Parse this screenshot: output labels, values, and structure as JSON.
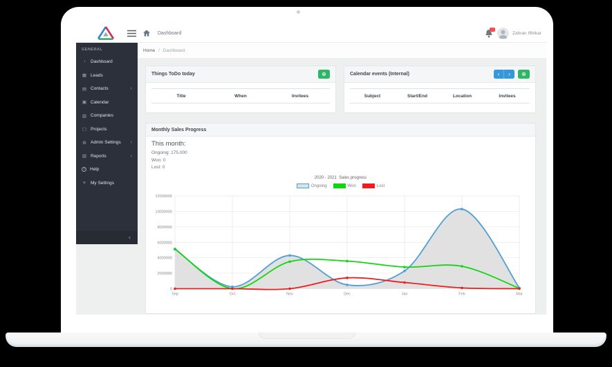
{
  "navbar": {
    "page_title": "Dashboard",
    "user_name": "Zahran Ifthikar",
    "notification_badge": ""
  },
  "breadcrumb": {
    "home": "Home",
    "separator": "/",
    "current": "Dashboard"
  },
  "sidebar": {
    "section_label": "GENERAL",
    "items": [
      {
        "label": "Dashboard",
        "icon": "speedometer-icon",
        "has_submenu": false
      },
      {
        "label": "Leads",
        "icon": "table-icon",
        "has_submenu": false
      },
      {
        "label": "Contacts",
        "icon": "address-book-icon",
        "has_submenu": true
      },
      {
        "label": "Calendar",
        "icon": "calendar-icon",
        "has_submenu": false
      },
      {
        "label": "Companies",
        "icon": "building-icon",
        "has_submenu": false
      },
      {
        "label": "Projects",
        "icon": "document-icon",
        "has_submenu": false
      },
      {
        "label": "Admin Settings",
        "icon": "gear-icon",
        "has_submenu": true
      },
      {
        "label": "Reports",
        "icon": "bar-chart-icon",
        "has_submenu": true
      },
      {
        "label": "Help",
        "icon": "help-icon",
        "has_submenu": false
      },
      {
        "label": "My Settings",
        "icon": "sliders-icon",
        "has_submenu": false
      }
    ],
    "collapse_chevron": "‹"
  },
  "cards": {
    "todo": {
      "title": "Things ToDo today",
      "add_button": "⊕",
      "columns": [
        "Title",
        "When",
        "Invitees"
      ],
      "rows": []
    },
    "calendar": {
      "title": "Calendar events (Internal)",
      "prev_button": "‹",
      "next_button": "›",
      "add_button": "⊕",
      "columns": [
        "Subject",
        "Start/End",
        "Location",
        "Invitees"
      ],
      "rows": []
    },
    "sales": {
      "title": "Monthly Sales Progress",
      "summary_heading": "This month:",
      "summary_lines": [
        "Ongoing: 175,000",
        "Won: 0",
        "Lost: 0"
      ]
    }
  },
  "chart_data": {
    "type": "line",
    "title": "2020 - 2021  Sales progress",
    "x": [
      "Sep",
      "Oct",
      "Nov",
      "Dec",
      "Jan",
      "Feb",
      "Mar"
    ],
    "series": [
      {
        "name": "Ongoing",
        "color": "#4e9fd6",
        "fill": "#dfdfdf",
        "legend_fill": "#dde2e8",
        "values": [
          5100000,
          250000,
          4300000,
          500000,
          2300000,
          10300000,
          100000
        ]
      },
      {
        "name": "Won",
        "color": "#0fd60f",
        "fill": null,
        "legend_fill": "#0fd60f",
        "values": [
          5150000,
          0,
          3500000,
          3570000,
          2800000,
          2900000,
          50000
        ]
      },
      {
        "name": "Lost",
        "color": "#ee1c1c",
        "fill": null,
        "legend_fill": "#ee1c1c",
        "values": [
          0,
          0,
          0,
          1400000,
          800000,
          100000,
          0
        ]
      }
    ],
    "ylim": [
      0,
      12000000
    ],
    "yticks": [
      0,
      2000000,
      4000000,
      6000000,
      8000000,
      10000000,
      12000000
    ],
    "grid": true,
    "legend_position": "top"
  },
  "colors": {
    "accent_green": "#2fb566",
    "accent_blue": "#3598db",
    "badge_red": "#ea5455",
    "sidebar_bg": "#2b303b"
  }
}
